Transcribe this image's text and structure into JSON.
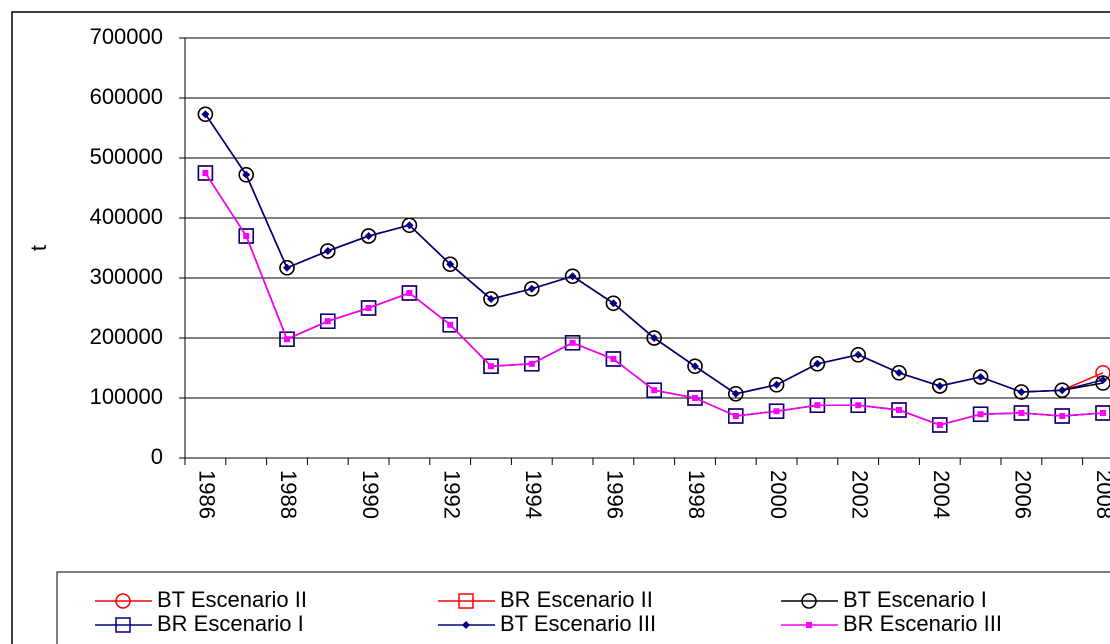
{
  "chart_data": {
    "type": "line",
    "y_label": "t",
    "categories": [
      "1986",
      null,
      "1988",
      null,
      "1990",
      null,
      "1992",
      null,
      "1994",
      null,
      "1996",
      null,
      "1998",
      null,
      "2000",
      null,
      "2002",
      null,
      "2004",
      null,
      "2006",
      null,
      "2008"
    ],
    "ylim": [
      0,
      700000
    ],
    "yticks": [
      0,
      100000,
      200000,
      300000,
      400000,
      500000,
      600000,
      700000
    ],
    "grid": true,
    "legend": "bottom",
    "series": [
      {
        "name": "BT Escenario II",
        "color": "#ff0000",
        "marker": "circle",
        "values": [
          573000,
          472000,
          317000,
          345000,
          370000,
          388000,
          323000,
          265000,
          282000,
          303000,
          258000,
          200000,
          153000,
          107000,
          122000,
          157000,
          172000,
          142000,
          120000,
          135000,
          110000,
          113000,
          142000
        ]
      },
      {
        "name": "BR Escenario II",
        "color": "#ff0000",
        "marker": "square",
        "values": [
          475000,
          370000,
          198000,
          228000,
          250000,
          275000,
          222000,
          153000,
          157000,
          192000,
          165000,
          113000,
          100000,
          70000,
          78000,
          88000,
          88000,
          80000,
          55000,
          73000,
          75000,
          70000,
          75000
        ]
      },
      {
        "name": "BT Escenario I",
        "color": "#000000",
        "marker": "circle",
        "values": [
          573000,
          472000,
          317000,
          345000,
          370000,
          388000,
          323000,
          265000,
          282000,
          303000,
          258000,
          200000,
          153000,
          107000,
          122000,
          157000,
          172000,
          142000,
          120000,
          135000,
          110000,
          113000,
          125000
        ]
      },
      {
        "name": "BR Escenario I",
        "color": "#000080",
        "marker": "square",
        "values": [
          475000,
          370000,
          198000,
          228000,
          250000,
          275000,
          222000,
          153000,
          157000,
          192000,
          165000,
          113000,
          100000,
          70000,
          78000,
          88000,
          88000,
          80000,
          55000,
          73000,
          75000,
          70000,
          75000
        ]
      },
      {
        "name": "BT Escenario III",
        "color": "#000080",
        "marker": "diamond",
        "values": [
          573000,
          472000,
          317000,
          345000,
          370000,
          388000,
          323000,
          265000,
          282000,
          303000,
          258000,
          200000,
          153000,
          107000,
          122000,
          157000,
          172000,
          142000,
          120000,
          135000,
          110000,
          113000,
          130000
        ]
      },
      {
        "name": "BR Escenario III",
        "color": "#ff00ff",
        "marker": "smallsquare",
        "values": [
          475000,
          370000,
          198000,
          228000,
          250000,
          275000,
          222000,
          153000,
          157000,
          192000,
          165000,
          113000,
          100000,
          70000,
          78000,
          88000,
          88000,
          80000,
          55000,
          73000,
          75000,
          70000,
          75000
        ]
      }
    ]
  }
}
